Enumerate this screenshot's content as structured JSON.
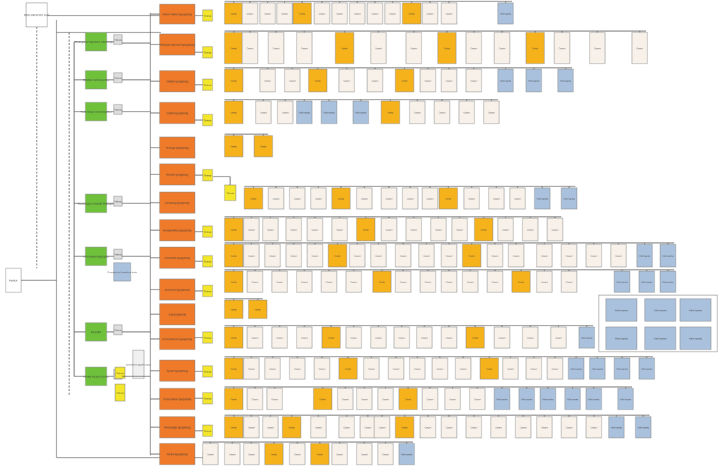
{
  "colors": {
    "root": "#ffffff",
    "division": "#6fc13b",
    "directorate": "#ef7a2a",
    "department": "#f6b21b",
    "unit": "#f7f1ea",
    "staff": "#f3e62b",
    "external": "#a9c1dd",
    "border": "#888888",
    "line": "#555555"
  },
  "root": {
    "label": "Rektor"
  },
  "top_box": {
    "label": "Belső ellenőrzési Iroda"
  },
  "divisions": [
    {
      "label": "Stratégiai és fejlesztési rektorhelyettes"
    },
    {
      "label": "Oktatási rektorhelyettes"
    },
    {
      "label": "Tudományos rektorhelyettes"
    },
    {
      "label": "Gazdasági és műszaki főigazgató"
    },
    {
      "label": "Informatikai főigazgató"
    },
    {
      "label": "Kancellár"
    },
    {
      "label": "Klinikai központ elnöke"
    }
  ],
  "small_tags": [
    {
      "label": "Titkárság"
    },
    {
      "label": "Titkárság"
    },
    {
      "label": "Titkárság"
    },
    {
      "label": "Titkárság"
    },
    {
      "label": "Titkárság"
    },
    {
      "label": "Titkárság"
    },
    {
      "label": "Titkárság"
    }
  ],
  "side_note": {
    "label": "Fenntartói és Kuratóriumi Iroda"
  },
  "staff_note": {
    "label": "Szervezési és ügyviteli csoport"
  },
  "directorates": [
    {
      "label": "Rektori Kabinet Igazgatóság"
    },
    {
      "label": "Stratégiai Fejlesztési Igazgatóság"
    },
    {
      "label": "Oktatási Igazgatóság"
    },
    {
      "label": "Kutatási Igazgatóság"
    },
    {
      "label": "Pénzügyi Igazgatóság"
    },
    {
      "label": "Műszaki Igazgatóság"
    },
    {
      "label": "Gazdasági Igazgatóság"
    },
    {
      "label": "Humánpolitikai Igazgatóság"
    },
    {
      "label": "Informatikai Igazgatóság"
    },
    {
      "label": "Beszerzési Igazgatóság"
    },
    {
      "label": "Jogi Igazgatóság"
    },
    {
      "label": "Kommunikációs Igazgatóság"
    },
    {
      "label": "Ápolási Igazgatóság"
    },
    {
      "label": "Orvosszakmai Igazgatóság"
    },
    {
      "label": "Minőségügyi Igazgatóság"
    },
    {
      "label": "Klinikai Igazgatóság"
    }
  ],
  "department_label": "Osztály",
  "unit_label": "Csoport",
  "external_label": "Külső egység",
  "staff_label": "Titkárság"
}
